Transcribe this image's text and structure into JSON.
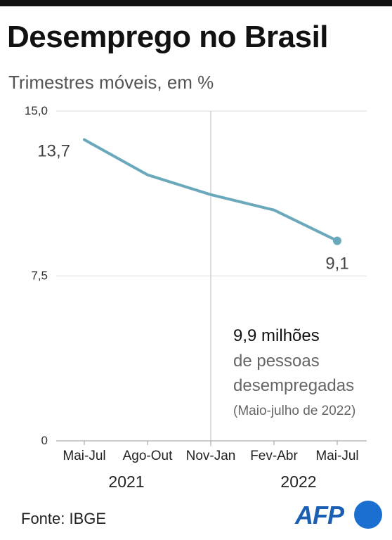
{
  "header": {
    "title": "Desemprego no Brasil",
    "subtitle": "Trimestres móveis, em %"
  },
  "chart_data": {
    "type": "line",
    "categories": [
      "Mai-Jul",
      "Ago-Out",
      "Nov-Jan",
      "Fev-Abr",
      "Mai-Jul"
    ],
    "year_labels": [
      "2021",
      "2022"
    ],
    "series": [
      {
        "values": [
          13.7,
          12.1,
          11.2,
          10.5,
          9.1
        ]
      }
    ],
    "point_labels": {
      "first": "13,7",
      "last": "9,1"
    },
    "y_ticks": [
      {
        "value": 0,
        "label": "0"
      },
      {
        "value": 7.5,
        "label": "7,5"
      },
      {
        "value": 15,
        "label": "15,0"
      }
    ],
    "ylim": [
      0,
      15
    ],
    "grid": true,
    "line_color": "#6aa9bb",
    "annotation": {
      "line1": "9,9 milhões",
      "line2": "de pessoas",
      "line3": "desempregadas",
      "line4": "(Maio-julho de 2022)"
    }
  },
  "footer": {
    "source": "Fonte: IBGE",
    "logo_text": "AFP"
  },
  "colors": {
    "brand_blue": "#1a6fd0",
    "line": "#6aa9bb"
  }
}
